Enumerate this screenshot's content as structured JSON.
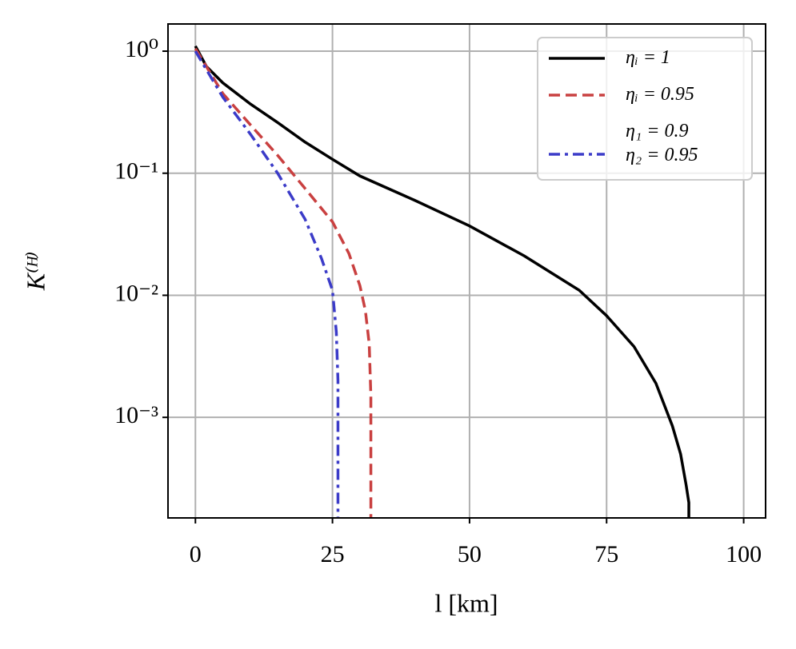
{
  "chart_data": {
    "type": "line",
    "x_label": "l [km]",
    "y_label": "K⁽ᴴ⁾",
    "xlim": [
      -5,
      104
    ],
    "xticks": [
      0,
      25,
      50,
      75,
      100
    ],
    "ylim": [
      0.00015,
      1.67
    ],
    "yticks": [
      {
        "value": 1,
        "label": "10⁰"
      },
      {
        "value": 0.1,
        "label": "10⁻¹"
      },
      {
        "value": 0.01,
        "label": "10⁻²"
      },
      {
        "value": 0.001,
        "label": "10⁻³"
      }
    ],
    "y_scale": "log",
    "grid": true,
    "legend": "upper right",
    "series": [
      {
        "name": "ηᵢ = 1",
        "color": "#000000",
        "style": "solid",
        "x": [
          0,
          2,
          5,
          10,
          15,
          20,
          25,
          30,
          40,
          50,
          60,
          70,
          75,
          80,
          84,
          87,
          88.5,
          89.5,
          90,
          90
        ],
        "values": [
          1.1,
          0.75,
          0.55,
          0.37,
          0.26,
          0.18,
          0.13,
          0.095,
          0.06,
          0.037,
          0.021,
          0.011,
          0.0068,
          0.0038,
          0.0019,
          0.00085,
          0.0005,
          0.00028,
          0.0002,
          0.00015
        ]
      },
      {
        "name": "ηᵢ = 0.95",
        "color": "#c94040",
        "style": "dashed",
        "x": [
          0,
          5,
          10,
          15,
          20,
          25,
          28,
          30,
          31,
          31.7,
          32,
          32
        ],
        "values": [
          1.05,
          0.45,
          0.25,
          0.14,
          0.075,
          0.04,
          0.022,
          0.012,
          0.0075,
          0.004,
          0.0015,
          0.00015
        ]
      },
      {
        "name": "η₁ = 0.9\nη₂ = 0.95",
        "color": "#3b3bc8",
        "style": "dashdot",
        "x": [
          0,
          5,
          10,
          15,
          20,
          23,
          25,
          25.7,
          26,
          26
        ],
        "values": [
          1.0,
          0.42,
          0.21,
          0.1,
          0.042,
          0.02,
          0.011,
          0.005,
          0.002,
          0.00015
        ]
      }
    ]
  }
}
